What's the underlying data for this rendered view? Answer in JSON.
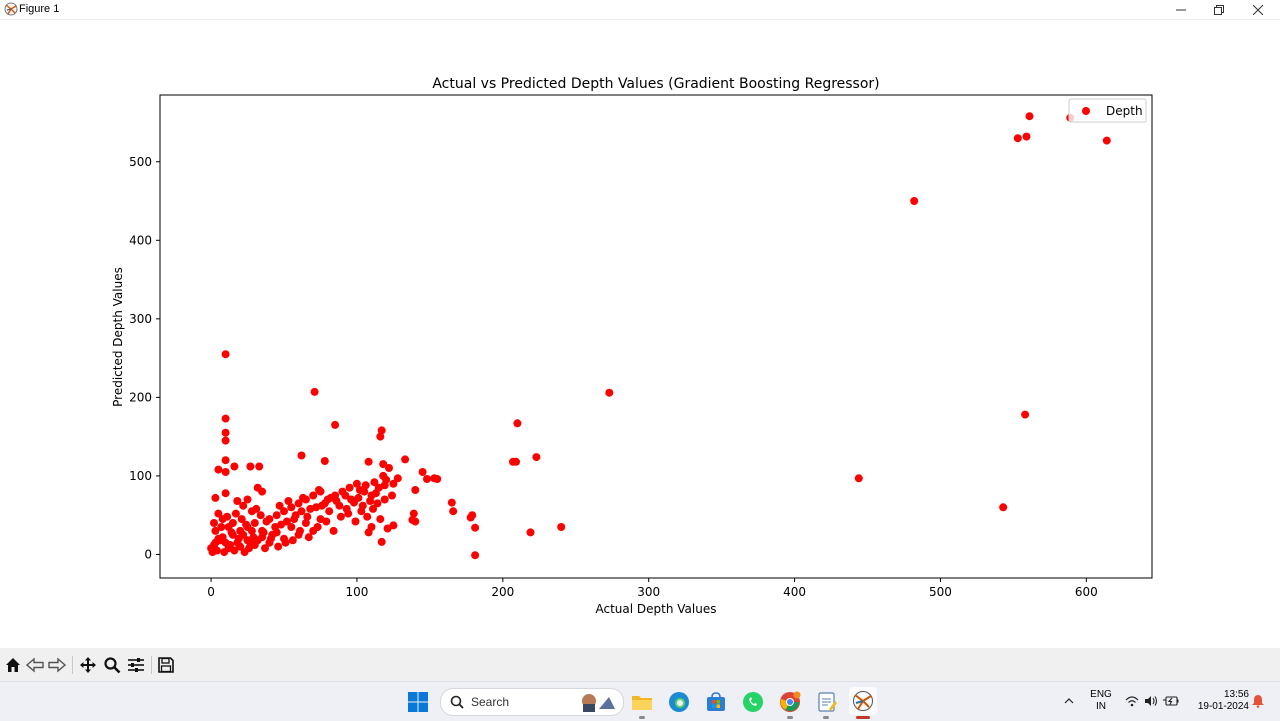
{
  "window": {
    "title": "Figure 1"
  },
  "chart_data": {
    "type": "scatter",
    "title": "Actual vs Predicted Depth Values (Gradient Boosting Regressor)",
    "xlabel": "Actual Depth Values",
    "ylabel": "Predicted Depth Values",
    "xlim": [
      -35,
      645
    ],
    "ylim": [
      -30,
      585
    ],
    "xticks": [
      0,
      100,
      200,
      300,
      400,
      500,
      600
    ],
    "yticks": [
      0,
      100,
      200,
      300,
      400,
      500
    ],
    "grid": false,
    "legend": {
      "placement": "top-right",
      "entries": [
        "Depth"
      ]
    },
    "series": [
      {
        "name": "Depth",
        "color": "#ff0000",
        "points": [
          [
            10,
            255
          ],
          [
            10,
            173
          ],
          [
            10,
            155
          ],
          [
            10,
            145
          ],
          [
            10,
            120
          ],
          [
            10,
            105
          ],
          [
            10,
            78
          ],
          [
            5,
            108
          ],
          [
            16,
            112
          ],
          [
            27,
            112
          ],
          [
            33,
            112
          ],
          [
            3,
            72
          ],
          [
            18,
            68
          ],
          [
            22,
            62
          ],
          [
            25,
            70
          ],
          [
            28,
            55
          ],
          [
            32,
            85
          ],
          [
            35,
            80
          ],
          [
            5,
            52
          ],
          [
            2,
            40
          ],
          [
            8,
            45
          ],
          [
            12,
            35
          ],
          [
            15,
            40
          ],
          [
            20,
            30
          ],
          [
            25,
            35
          ],
          [
            30,
            40
          ],
          [
            35,
            30
          ],
          [
            40,
            45
          ],
          [
            45,
            50
          ],
          [
            50,
            55
          ],
          [
            55,
            60
          ],
          [
            60,
            65
          ],
          [
            65,
            70
          ],
          [
            70,
            75
          ],
          [
            75,
            80
          ],
          [
            80,
            70
          ],
          [
            85,
            75
          ],
          [
            90,
            80
          ],
          [
            95,
            85
          ],
          [
            100,
            90
          ],
          [
            105,
            80
          ],
          [
            110,
            75
          ],
          [
            115,
            85
          ],
          [
            120,
            95
          ],
          [
            125,
            90
          ],
          [
            5,
            20
          ],
          [
            10,
            15
          ],
          [
            15,
            25
          ],
          [
            20,
            10
          ],
          [
            25,
            18
          ],
          [
            30,
            12
          ],
          [
            35,
            22
          ],
          [
            40,
            15
          ],
          [
            45,
            28
          ],
          [
            50,
            20
          ],
          [
            55,
            35
          ],
          [
            60,
            25
          ],
          [
            65,
            40
          ],
          [
            70,
            30
          ],
          [
            75,
            45
          ],
          [
            0,
            8
          ],
          [
            2,
            12
          ],
          [
            4,
            5
          ],
          [
            6,
            18
          ],
          [
            8,
            22
          ],
          [
            12,
            8
          ],
          [
            14,
            28
          ],
          [
            18,
            15
          ],
          [
            22,
            25
          ],
          [
            26,
            8
          ],
          [
            28,
            30
          ],
          [
            32,
            18
          ],
          [
            36,
            28
          ],
          [
            42,
            25
          ],
          [
            48,
            38
          ],
          [
            52,
            42
          ],
          [
            58,
            50
          ],
          [
            62,
            55
          ],
          [
            66,
            48
          ],
          [
            72,
            60
          ],
          [
            78,
            65
          ],
          [
            82,
            72
          ],
          [
            86,
            68
          ],
          [
            92,
            75
          ],
          [
            96,
            70
          ],
          [
            102,
            82
          ],
          [
            106,
            88
          ],
          [
            112,
            92
          ],
          [
            118,
            100
          ],
          [
            122,
            110
          ],
          [
            62,
            126
          ],
          [
            78,
            119
          ],
          [
            71,
            207
          ],
          [
            85,
            165
          ],
          [
            116,
            150
          ],
          [
            117,
            158
          ],
          [
            108,
            118
          ],
          [
            133,
            121
          ],
          [
            145,
            105
          ],
          [
            148,
            96
          ],
          [
            153,
            97
          ],
          [
            155,
            96
          ],
          [
            140,
            82
          ],
          [
            138,
            44
          ],
          [
            140,
            42
          ],
          [
            139,
            52
          ],
          [
            117,
            16
          ],
          [
            108,
            28
          ],
          [
            110,
            35
          ],
          [
            116,
            45
          ],
          [
            121,
            33
          ],
          [
            125,
            37
          ],
          [
            128,
            97
          ],
          [
            118,
            115
          ],
          [
            165,
            66
          ],
          [
            166,
            55
          ],
          [
            178,
            47
          ],
          [
            179,
            50
          ],
          [
            181,
            34
          ],
          [
            181,
            -1
          ],
          [
            207,
            118
          ],
          [
            209,
            118
          ],
          [
            210,
            167
          ],
          [
            223,
            124
          ],
          [
            219,
            28
          ],
          [
            240,
            35
          ],
          [
            273,
            206
          ],
          [
            444,
            97
          ],
          [
            482,
            450
          ],
          [
            543,
            60
          ],
          [
            553,
            530
          ],
          [
            558,
            178
          ],
          [
            559,
            532
          ],
          [
            561,
            558
          ],
          [
            589,
            556
          ],
          [
            614,
            527
          ],
          [
            3,
            30
          ],
          [
            7,
            35
          ],
          [
            11,
            48
          ],
          [
            17,
            52
          ],
          [
            21,
            45
          ],
          [
            24,
            38
          ],
          [
            29,
            22
          ],
          [
            31,
            58
          ],
          [
            34,
            50
          ],
          [
            38,
            42
          ],
          [
            44,
            35
          ],
          [
            47,
            62
          ],
          [
            53,
            68
          ],
          [
            57,
            45
          ],
          [
            63,
            72
          ],
          [
            68,
            58
          ],
          [
            74,
            82
          ],
          [
            76,
            62
          ],
          [
            81,
            55
          ],
          [
            88,
            62
          ],
          [
            93,
            58
          ],
          [
            98,
            66
          ],
          [
            101,
            72
          ],
          [
            104,
            62
          ],
          [
            109,
            68
          ],
          [
            113,
            78
          ],
          [
            119,
            88
          ],
          [
            1,
            3
          ],
          [
            3,
            15
          ],
          [
            9,
            3
          ],
          [
            13,
            12
          ],
          [
            16,
            5
          ],
          [
            19,
            20
          ],
          [
            23,
            3
          ],
          [
            27,
            14
          ],
          [
            37,
            8
          ],
          [
            41,
            20
          ],
          [
            46,
            10
          ],
          [
            51,
            15
          ],
          [
            56,
            18
          ],
          [
            61,
            30
          ],
          [
            67,
            22
          ],
          [
            73,
            35
          ],
          [
            79,
            42
          ],
          [
            84,
            30
          ],
          [
            89,
            48
          ],
          [
            94,
            52
          ],
          [
            99,
            42
          ],
          [
            103,
            55
          ],
          [
            107,
            48
          ],
          [
            111,
            58
          ],
          [
            114,
            65
          ],
          [
            119,
            70
          ],
          [
            124,
            75
          ]
        ]
      }
    ]
  },
  "toolbar": {
    "buttons": [
      "home",
      "back",
      "forward",
      "pan",
      "zoom",
      "configure-subplots",
      "save"
    ]
  },
  "taskbar": {
    "search_label": "Search",
    "language_top": "ENG",
    "language_bottom": "IN",
    "time": "13:56",
    "date": "19-01-2024"
  }
}
